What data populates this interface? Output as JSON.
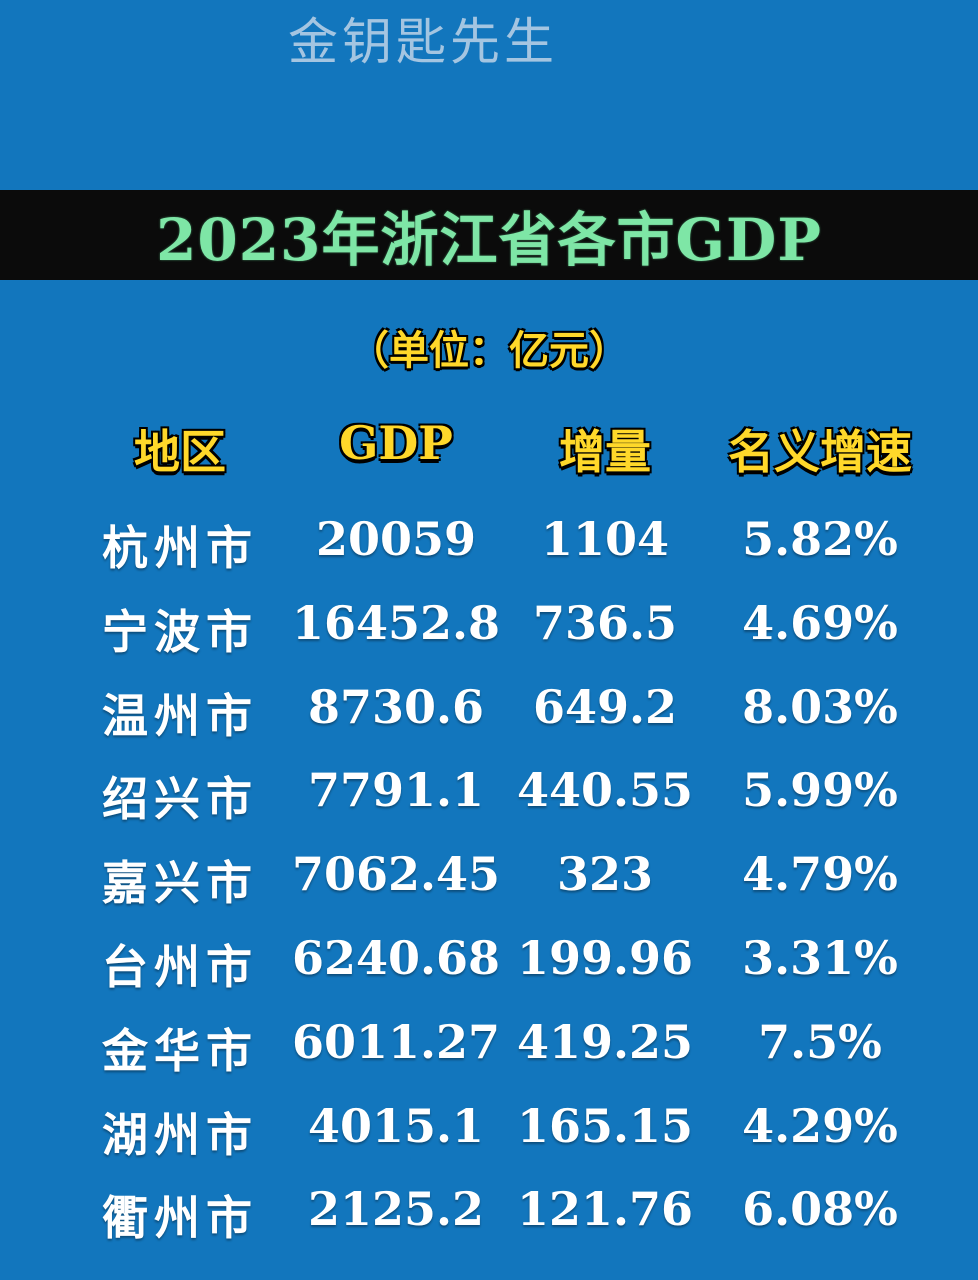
{
  "watermark": "金钥匙先生",
  "title": "2023年浙江省各市GDP",
  "unit": "（单位：亿元）",
  "headers": [
    "地区",
    "GDP",
    "增量",
    "名义增速"
  ],
  "rows": [
    {
      "city": "杭州市",
      "gdp": "20059",
      "increase": "1104",
      "growth": "5.82%"
    },
    {
      "city": "宁波市",
      "gdp": "16452.8",
      "increase": "736.5",
      "growth": "4.69%"
    },
    {
      "city": "温州市",
      "gdp": "8730.6",
      "increase": "649.2",
      "growth": "8.03%"
    },
    {
      "city": "绍兴市",
      "gdp": "7791.1",
      "increase": "440.55",
      "growth": "5.99%"
    },
    {
      "city": "嘉兴市",
      "gdp": "7062.45",
      "increase": "323",
      "growth": "4.79%"
    },
    {
      "city": "台州市",
      "gdp": "6240.68",
      "increase": "199.96",
      "growth": "3.31%"
    },
    {
      "city": "金华市",
      "gdp": "6011.27",
      "increase": "419.25",
      "growth": "7.5%"
    },
    {
      "city": "湖州市",
      "gdp": "4015.1",
      "increase": "165.15",
      "growth": "4.29%"
    },
    {
      "city": "衢州市",
      "gdp": "2125.2",
      "increase": "121.76",
      "growth": "6.08%"
    }
  ],
  "colors": {
    "background": "#1276bd",
    "title_band": "#0b0b0b",
    "title_text": "#7ee6a6",
    "header_text": "#ffd82a",
    "cell_text": "#ffffff"
  }
}
